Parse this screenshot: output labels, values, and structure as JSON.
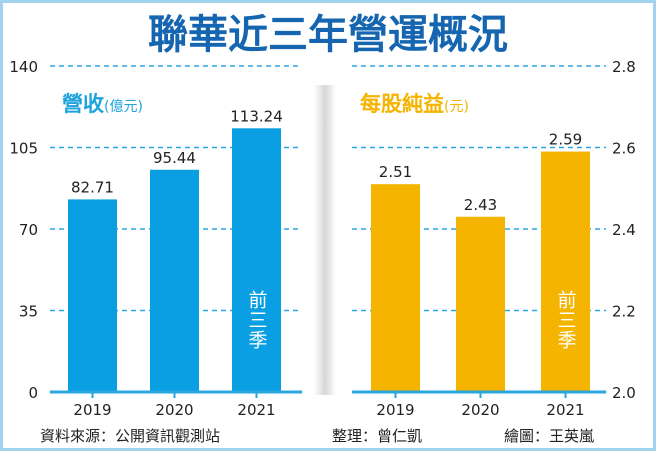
{
  "title": "聯華近三年營運概況",
  "colors": {
    "title": "#1565b0",
    "revenue": "#0a9fe3",
    "eps": "#f5b400",
    "grid": "#2aa6de",
    "label_left": "#1ea3dc",
    "label_right": "#f5b400"
  },
  "chart_data": [
    {
      "type": "bar",
      "title": "營收",
      "unit": "(億元)",
      "categories": [
        "2019",
        "2020",
        "2021"
      ],
      "values": [
        82.71,
        95.44,
        113.24
      ],
      "value_labels": [
        "82.71",
        "95.44",
        "113.24"
      ],
      "ylim": [
        0,
        140
      ],
      "yticks": [
        "0",
        "35",
        "70",
        "105",
        "140"
      ],
      "y_axis_side": "left",
      "grid": true,
      "bar_annotation": "前三季"
    },
    {
      "type": "bar",
      "title": "每股純益",
      "unit": "(元)",
      "categories": [
        "2019",
        "2020",
        "2021"
      ],
      "values": [
        2.51,
        2.43,
        2.59
      ],
      "value_labels": [
        "2.51",
        "2.43",
        "2.59"
      ],
      "ylim": [
        2.0,
        2.8
      ],
      "yticks": [
        "2.0",
        "2.2",
        "2.4",
        "2.6",
        "2.8"
      ],
      "y_axis_side": "right",
      "grid": true,
      "bar_annotation": "前三季"
    }
  ],
  "footer": {
    "source": "資料來源：公開資訊觀測站",
    "editor": "整理：曾仁凱",
    "artist": "繪圖：王英嵐"
  }
}
